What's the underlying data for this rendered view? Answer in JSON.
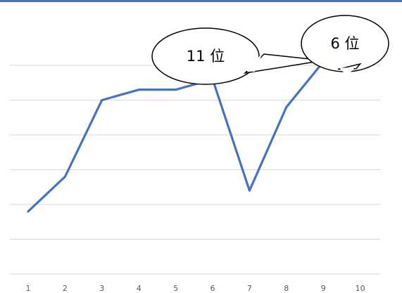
{
  "colors": {
    "top_rule": "#4a72b8",
    "series": "#4472c4",
    "grid": "#d9d9d9",
    "callout_fill": "#ffffff",
    "callout_stroke": "#000000"
  },
  "chart_data": {
    "type": "line",
    "x": [
      "1",
      "2",
      "3",
      "4",
      "5",
      "6",
      "7",
      "8",
      "9",
      "10"
    ],
    "series": [
      {
        "values": [
          1.8,
          2.8,
          5.0,
          5.3,
          5.3,
          5.6,
          2.4,
          4.8,
          6.1,
          6.0
        ]
      }
    ],
    "ylim": [
      0,
      7
    ],
    "grid": "horizontal",
    "legend": "none",
    "annotations": [
      {
        "text": "11 位",
        "point_index": 8
      },
      {
        "text": "6 位",
        "point_index": 9
      }
    ]
  }
}
